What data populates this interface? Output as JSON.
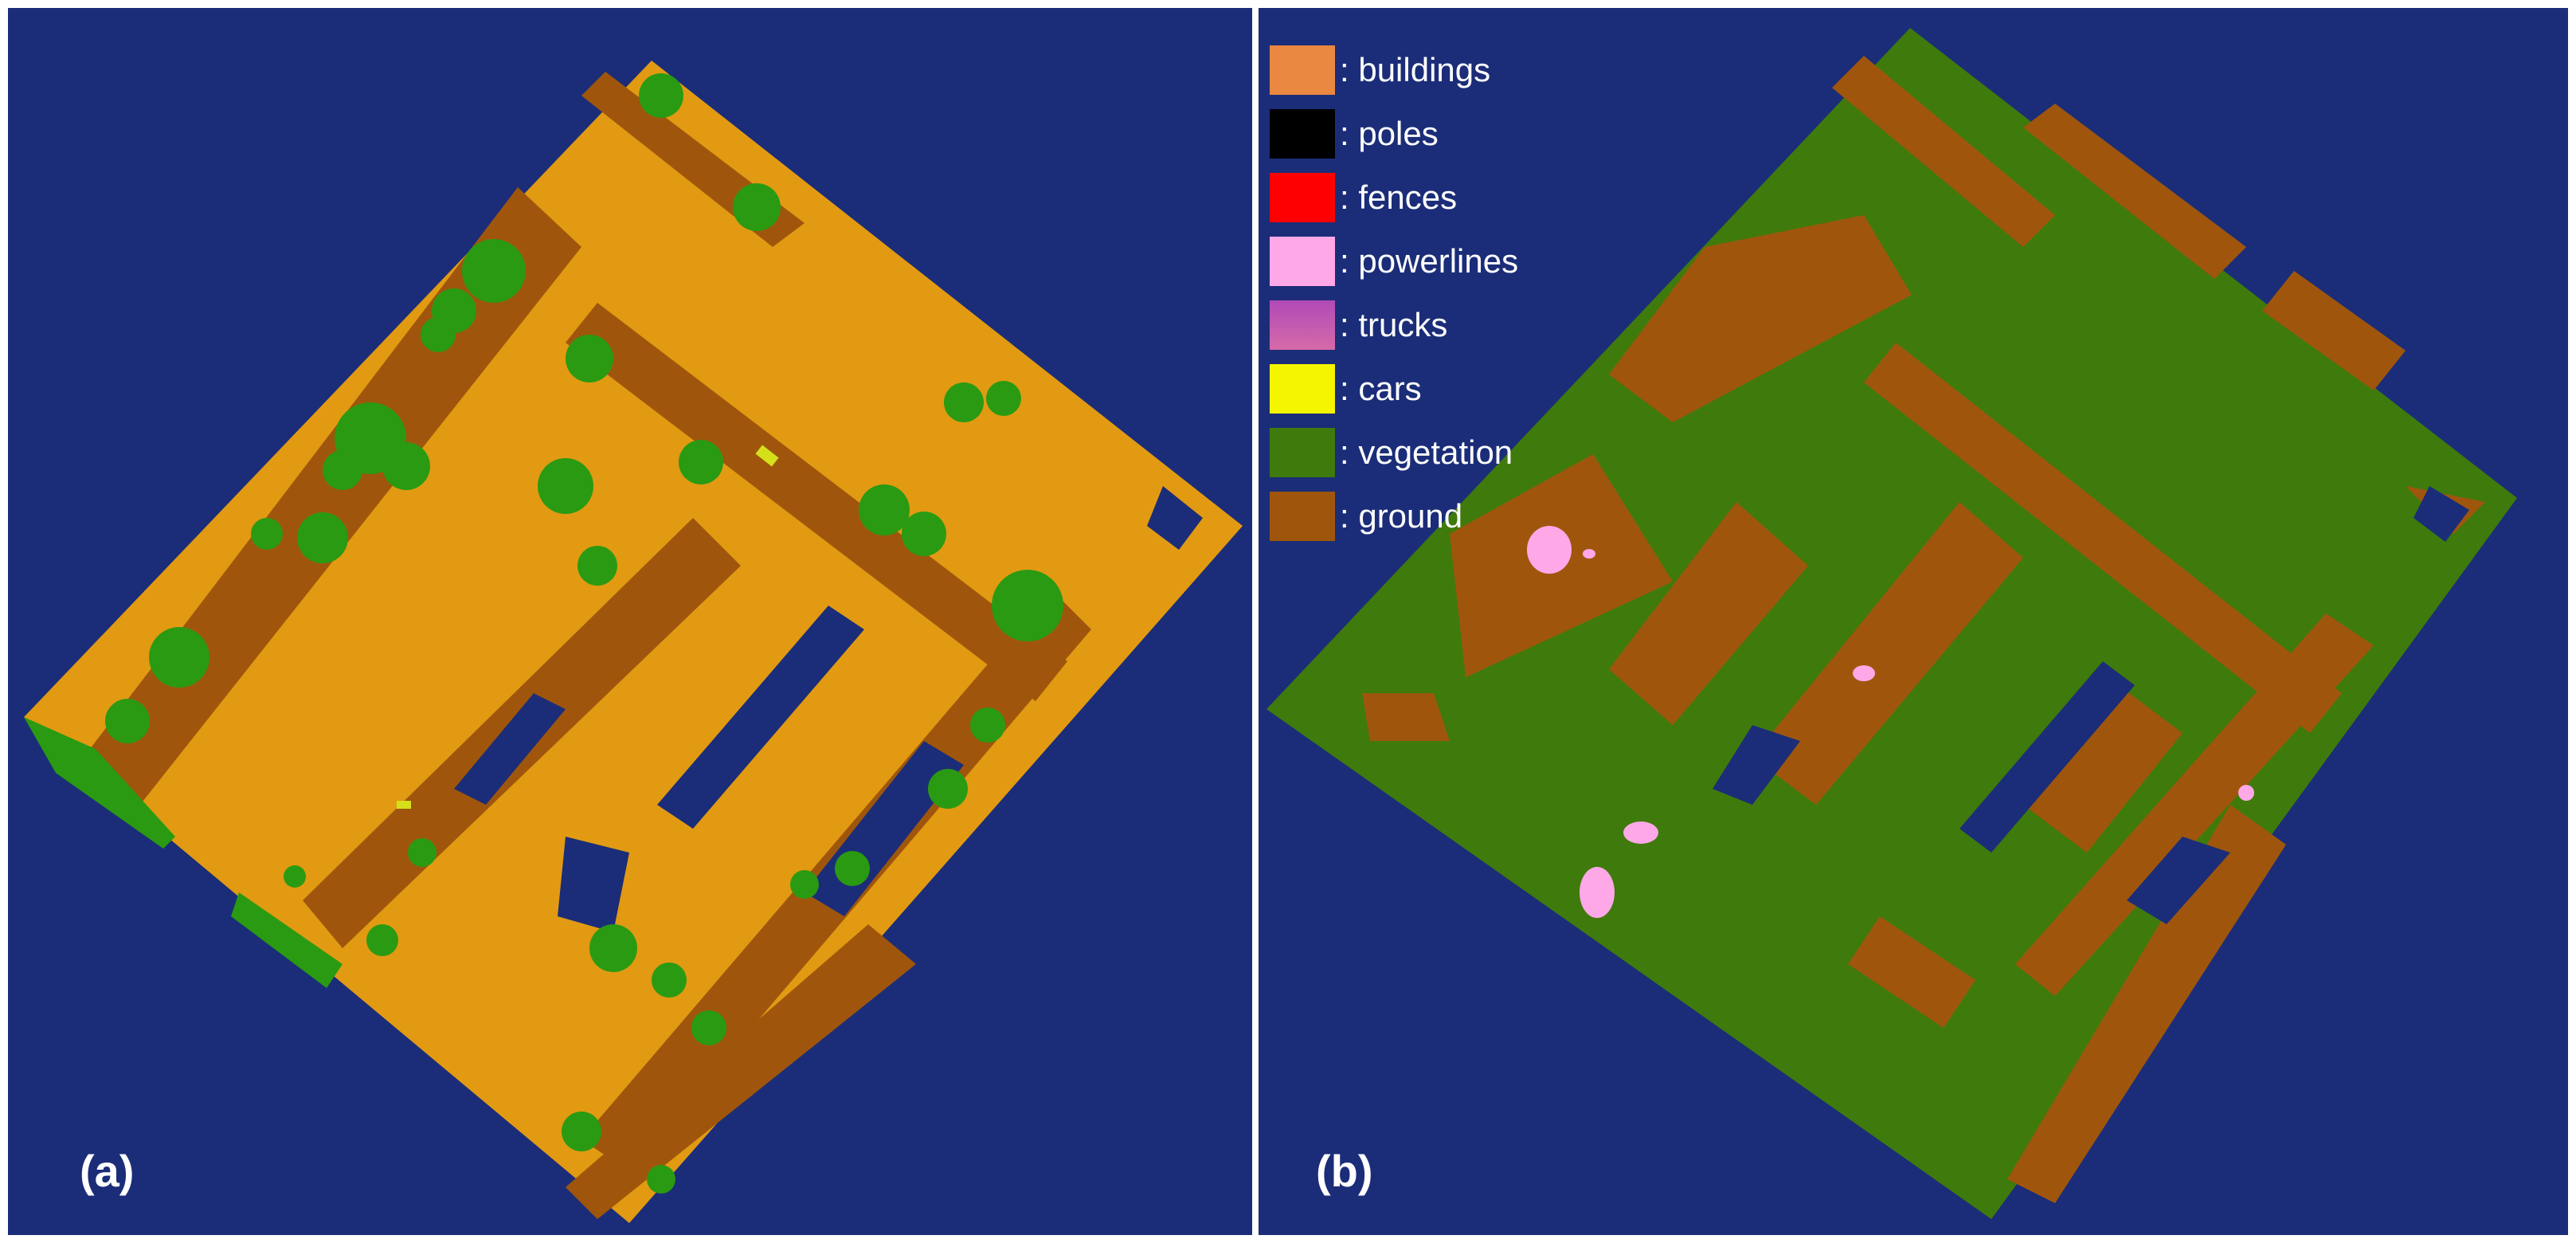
{
  "colors": {
    "background": "#1b2d78",
    "buildings_a": "#e19a12",
    "buildings_legend": "#ea8740",
    "vegetation_a": "#2a9a12",
    "vegetation_b": "#3f7a0c",
    "ground": "#9f560c",
    "poles": "#000000",
    "fences": "#ff0000",
    "powerlines": "#ffa8e8",
    "trucks": "#b04ab8",
    "cars": "#f5f500"
  },
  "panel_a": {
    "label": "(a)"
  },
  "panel_b": {
    "label": "(b)",
    "legend": [
      {
        "text": ": buildings",
        "color": "#ea8740"
      },
      {
        "text": ": poles",
        "color": "#000000"
      },
      {
        "text": ": fences",
        "color": "#ff0000"
      },
      {
        "text": ": powerlines",
        "color": "#ffa8e8"
      },
      {
        "text": ": trucks",
        "color": "#b04ab8"
      },
      {
        "text": ": cars",
        "color": "#f5f500"
      },
      {
        "text": ": vegetation",
        "color": "#3f7a0c"
      },
      {
        "text": ": ground",
        "color": "#9f560c"
      }
    ]
  }
}
